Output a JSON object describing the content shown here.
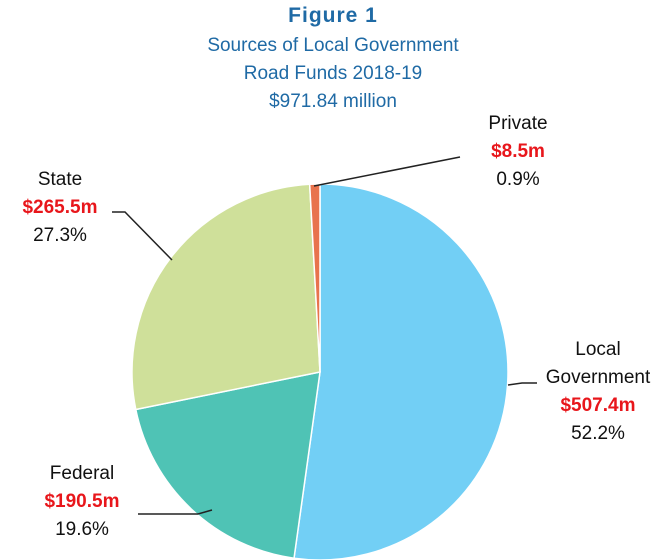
{
  "chart_data": {
    "type": "pie",
    "title": "Figure 1",
    "subtitle": [
      "Sources of Local Government",
      "Road Funds 2018-19",
      "$971.84 million"
    ],
    "categories": [
      "Local Government",
      "Federal",
      "State",
      "Private"
    ],
    "values": [
      507.4,
      190.5,
      265.5,
      8.5
    ],
    "value_labels": [
      "$507.4m",
      "$190.5m",
      "$265.5m",
      "$8.5m"
    ],
    "percent_labels": [
      "52.2%",
      "19.6%",
      "27.3%",
      "0.9%"
    ],
    "colors": [
      "#72cff5",
      "#4fc3b5",
      "#cfe09a",
      "#e8734d"
    ]
  }
}
